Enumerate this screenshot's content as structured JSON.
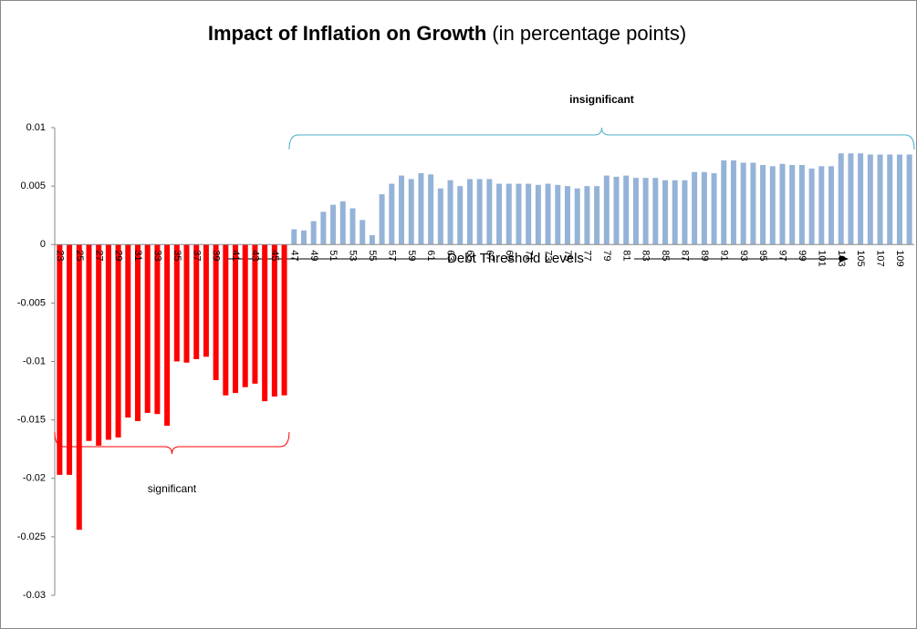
{
  "chart_data": {
    "type": "bar",
    "title": "Impact of Inflation on Growth",
    "subtitle": "(in percentage points)",
    "x_label": "Debt Threshold Levels",
    "categories": [
      23,
      null,
      25,
      null,
      27,
      null,
      29,
      null,
      31,
      null,
      33,
      null,
      35,
      null,
      37,
      null,
      39,
      null,
      41,
      null,
      43,
      null,
      45,
      null,
      47,
      null,
      49,
      null,
      51,
      null,
      53,
      null,
      55,
      null,
      57,
      null,
      59,
      null,
      61,
      null,
      63,
      null,
      65,
      null,
      67,
      null,
      69,
      null,
      71,
      null,
      73,
      null,
      75,
      null,
      77,
      null,
      79,
      null,
      81,
      null,
      83,
      null,
      85,
      null,
      87,
      null,
      89,
      null,
      91,
      null,
      93,
      null,
      95,
      null,
      97,
      null,
      99,
      null,
      101,
      null,
      103,
      null,
      105,
      null,
      107,
      null,
      109,
      null
    ],
    "series": [
      {
        "name": "significant",
        "color": "#ff0000",
        "values": [
          -0.0197,
          -0.0197,
          -0.0244,
          -0.0168,
          -0.0172,
          -0.0167,
          -0.0165,
          -0.0148,
          -0.0151,
          -0.0144,
          -0.0145,
          -0.0155,
          -0.01,
          -0.0101,
          -0.0098,
          -0.0096,
          -0.0116,
          -0.0129,
          -0.0127,
          -0.0122,
          -0.0119,
          -0.0134,
          -0.013,
          -0.0129,
          null,
          null,
          null,
          null,
          null,
          null,
          null,
          null,
          null,
          null,
          null,
          null,
          null,
          null,
          null,
          null,
          null,
          null,
          null,
          null,
          null,
          null,
          null,
          null,
          null,
          null,
          null,
          null,
          null,
          null,
          null,
          null,
          null,
          null,
          null,
          null,
          null,
          null,
          null,
          null,
          null,
          null,
          null,
          null,
          null,
          null,
          null,
          null,
          null,
          null,
          null,
          null,
          null,
          null,
          null,
          null,
          null,
          null,
          null,
          null,
          null,
          null,
          null,
          null
        ]
      },
      {
        "name": "insignificant",
        "color": "#95b3d7",
        "values": [
          null,
          null,
          null,
          null,
          null,
          null,
          null,
          null,
          null,
          null,
          null,
          null,
          null,
          null,
          null,
          null,
          null,
          null,
          null,
          null,
          null,
          null,
          null,
          null,
          0.0013,
          0.0012,
          0.002,
          0.0028,
          0.0034,
          0.0037,
          0.0031,
          0.0021,
          0.0008,
          0.0043,
          0.0052,
          0.0059,
          0.0056,
          0.0061,
          0.006,
          0.0048,
          0.0055,
          0.005,
          0.0056,
          0.0056,
          0.0056,
          0.0052,
          0.0052,
          0.0052,
          0.0052,
          0.0051,
          0.0052,
          0.0051,
          0.005,
          0.0048,
          0.005,
          0.005,
          0.0059,
          0.0058,
          0.0059,
          0.0057,
          0.0057,
          0.0057,
          0.0055,
          0.0055,
          0.0055,
          0.0062,
          0.0062,
          0.0061,
          0.0072,
          0.0072,
          0.007,
          0.007,
          0.0068,
          0.0067,
          0.0069,
          0.0068,
          0.0068,
          0.0065,
          0.0067,
          0.0067,
          0.0078,
          0.0078,
          0.0078,
          0.0077,
          0.0077,
          0.0077,
          0.0077,
          0.0077
        ]
      }
    ],
    "ylim": [
      -0.03,
      0.01
    ],
    "yticks": [
      -0.03,
      -0.025,
      -0.02,
      -0.015,
      -0.01,
      -0.005,
      0,
      0.005,
      0.01
    ]
  }
}
